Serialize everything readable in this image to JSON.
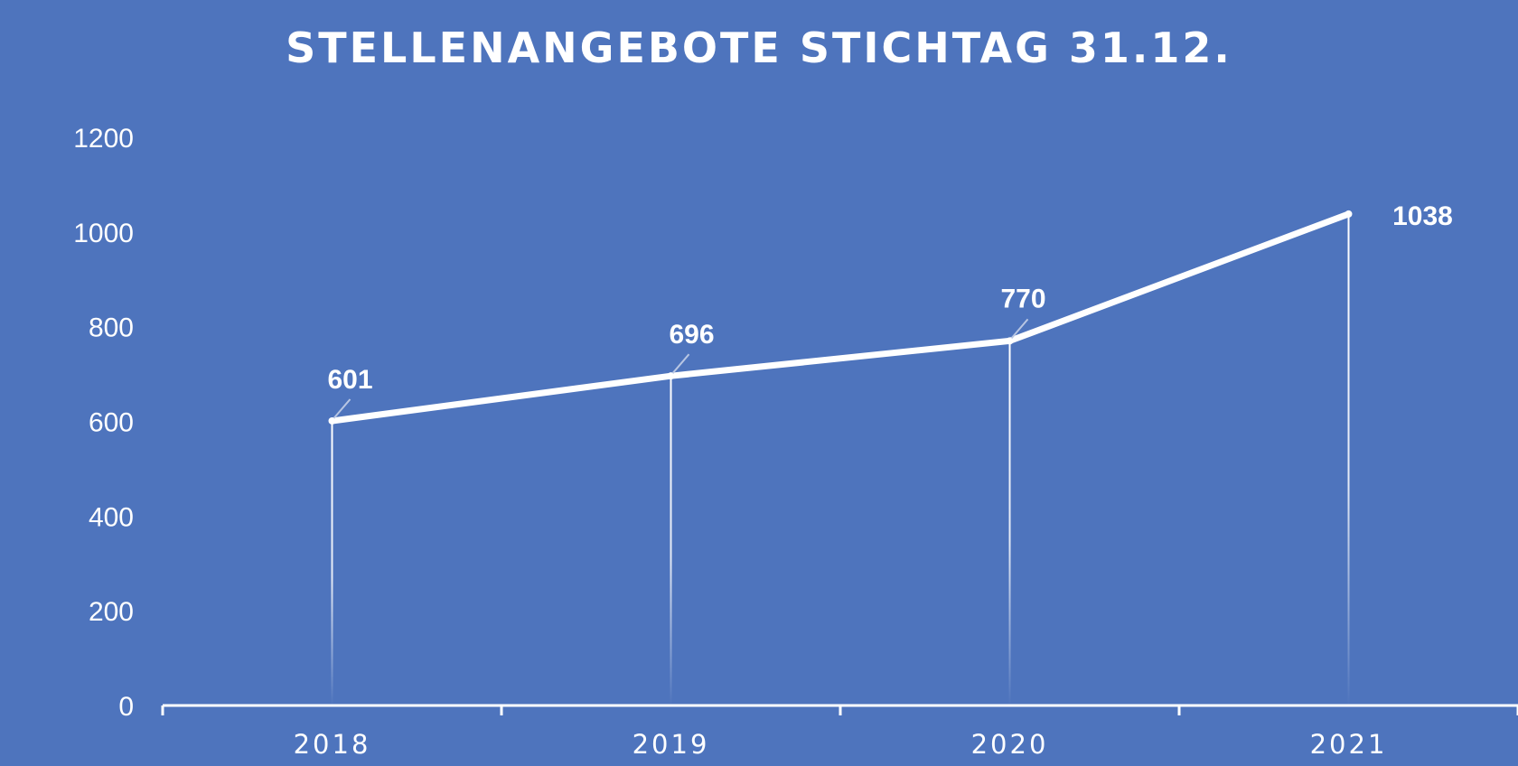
{
  "chart_data": {
    "type": "line",
    "title": "STELLENANGEBOTE STICHTAG 31.12.",
    "categories": [
      "2018",
      "2019",
      "2020",
      "2021"
    ],
    "series": [
      {
        "values": [
          601,
          696,
          770,
          1038
        ]
      }
    ],
    "data_labels": [
      "601",
      "696",
      "770",
      "1038"
    ],
    "ylim": [
      0,
      1200
    ],
    "yticks": [
      0,
      200,
      400,
      600,
      800,
      1000,
      1200
    ],
    "xlabel": "",
    "ylabel": "",
    "grid": false,
    "legend": "none",
    "drop_lines": true
  },
  "colors": {
    "background": "#4e74bd",
    "line": "#ffffff",
    "text": "#ffffff",
    "leader": "#b8c6e3"
  }
}
